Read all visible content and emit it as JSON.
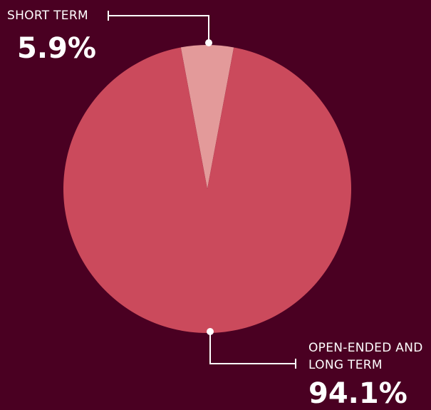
{
  "chart_data": {
    "type": "pie",
    "categories": [
      "SHORT TERM",
      "OPEN-ENDED AND LONG TERM"
    ],
    "values": [
      5.9,
      94.1
    ],
    "value_labels": [
      "5.9%",
      "94.1%"
    ],
    "colors": [
      "#e39a9a",
      "#cb4a5c"
    ]
  }
}
